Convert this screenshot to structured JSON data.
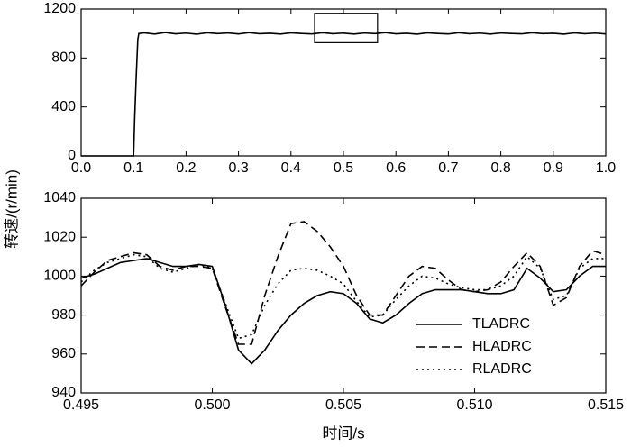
{
  "chart_data": [
    {
      "type": "line",
      "ylabel": "转速/(r/min)",
      "x": [
        0,
        0.05,
        0.098,
        0.1,
        0.102,
        0.105,
        0.108,
        0.11,
        0.12,
        0.14,
        0.16,
        0.18,
        0.2,
        0.22,
        0.24,
        0.26,
        0.28,
        0.3,
        0.32,
        0.34,
        0.36,
        0.38,
        0.4,
        0.42,
        0.44,
        0.46,
        0.48,
        0.5,
        0.52,
        0.54,
        0.56,
        0.58,
        0.6,
        0.62,
        0.64,
        0.66,
        0.68,
        0.7,
        0.72,
        0.74,
        0.76,
        0.78,
        0.8,
        0.82,
        0.84,
        0.86,
        0.88,
        0.9,
        0.92,
        0.94,
        0.96,
        0.98,
        1.0
      ],
      "series": [
        {
          "color": "#000000",
          "style": "solid",
          "values": [
            0,
            0,
            0,
            0,
            300,
            650,
            950,
            1000,
            1005,
            995,
            1008,
            997,
            1003,
            994,
            1006,
            999,
            1004,
            996,
            1007,
            998,
            1002,
            995,
            1005,
            1000,
            996,
            1006,
            998,
            1003,
            995,
            1004,
            999,
            1007,
            997,
            1002,
            994,
            1005,
            1000,
            996,
            1006,
            998,
            1003,
            995,
            1004,
            1000,
            997,
            1006,
            999,
            1002,
            994,
            1005,
            998,
            1003,
            996
          ]
        }
      ],
      "zoom_box": {
        "xlim": [
          0.445,
          0.565
        ],
        "ylim": [
          925,
          1165
        ]
      },
      "xlim": [
        0,
        1.0
      ],
      "xticks": [
        {
          "value": 0,
          "label": "0.0"
        },
        0.1,
        0.2,
        0.3,
        0.4,
        0.5,
        0.6,
        0.7,
        0.8,
        0.9,
        {
          "value": 1.0,
          "label": "1.0"
        }
      ],
      "ylim": [
        0,
        1200
      ],
      "yticks": [
        0,
        400,
        800,
        1200
      ]
    },
    {
      "type": "line",
      "xlabel": "时间/s",
      "x": [
        0.495,
        0.4955,
        0.496,
        0.4965,
        0.497,
        0.4975,
        0.498,
        0.4985,
        0.499,
        0.4995,
        0.5,
        0.5005,
        0.501,
        0.5015,
        0.502,
        0.5025,
        0.503,
        0.5035,
        0.504,
        0.5045,
        0.505,
        0.5055,
        0.506,
        0.5065,
        0.507,
        0.5075,
        0.508,
        0.5085,
        0.509,
        0.5095,
        0.51,
        0.5105,
        0.511,
        0.5115,
        0.512,
        0.5125,
        0.513,
        0.5135,
        0.514,
        0.5145,
        0.515
      ],
      "series": [
        {
          "name": "TLADRC",
          "color": "#000000",
          "style": "solid",
          "values": [
            999,
            1001,
            1004,
            1007,
            1008,
            1009,
            1007,
            1005,
            1005,
            1006,
            1005,
            985,
            962,
            955,
            962,
            972,
            980,
            986,
            990,
            992,
            991,
            986,
            978,
            976,
            980,
            986,
            991,
            993,
            993,
            993,
            992,
            991,
            991,
            993,
            1004,
            999,
            992,
            993,
            1000,
            1005,
            1005
          ]
        },
        {
          "name": "HLADRC",
          "color": "#000000",
          "style": "dashed",
          "values": [
            995,
            1002,
            1008,
            1010,
            1012,
            1011,
            1005,
            1003,
            1005,
            1005,
            1004,
            984,
            965,
            965,
            990,
            1010,
            1027,
            1028,
            1023,
            1015,
            1005,
            990,
            980,
            980,
            990,
            1000,
            1005,
            1004,
            998,
            993,
            992,
            993,
            997,
            1005,
            1012,
            1005,
            985,
            989,
            1005,
            1013,
            1011
          ]
        },
        {
          "name": "RLADRC",
          "color": "#000000",
          "style": "dotted",
          "values": [
            997,
            1003,
            1007,
            1009,
            1011,
            1010,
            1004,
            1002,
            1004,
            1006,
            1004,
            986,
            968,
            970,
            985,
            996,
            1003,
            1004,
            1003,
            1000,
            996,
            987,
            979,
            980,
            988,
            995,
            1000,
            999,
            996,
            994,
            993,
            993,
            995,
            1000,
            1010,
            1004,
            988,
            990,
            1004,
            1009,
            1009
          ]
        }
      ],
      "legend": "lower right",
      "xlim": [
        0.495,
        0.515
      ],
      "xticks": [
        0.495,
        {
          "value": 0.5,
          "label": "0.500"
        },
        0.505,
        {
          "value": 0.51,
          "label": "0.510"
        },
        0.515
      ],
      "ylim": [
        940,
        1040
      ],
      "yticks": [
        940,
        960,
        980,
        1000,
        1020,
        1040
      ]
    }
  ]
}
